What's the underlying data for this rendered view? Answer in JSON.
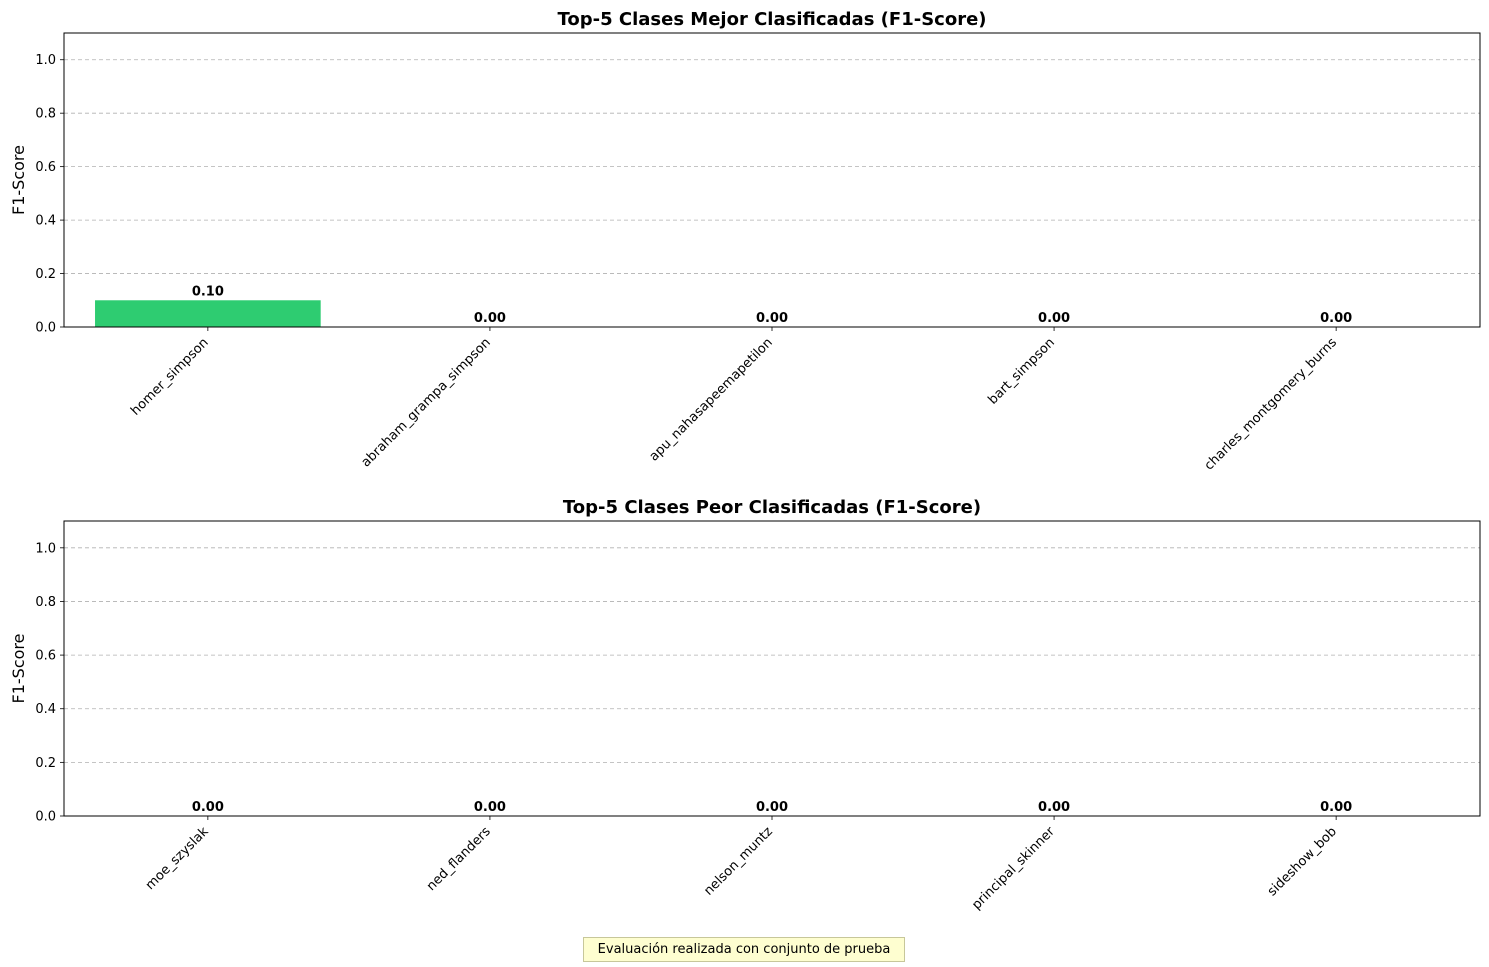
{
  "chart_data": [
    {
      "type": "bar",
      "title": "Top-5 Clases Mejor Clasificadas (F1-Score)",
      "xlabel": "",
      "ylabel": "F1-Score",
      "categories": [
        "homer_simpson",
        "abraham_grampa_simpson",
        "apu_nahasapeemapetilon",
        "bart_simpson",
        "charles_montgomery_burns"
      ],
      "values": [
        0.1,
        0.0,
        0.0,
        0.0,
        0.0
      ],
      "value_labels": [
        "0.10",
        "0.00",
        "0.00",
        "0.00",
        "0.00"
      ],
      "ylim": [
        0,
        1.1
      ],
      "yticks": [
        0.0,
        0.2,
        0.4,
        0.6,
        0.8,
        1.0
      ],
      "ytick_labels": [
        "0.0",
        "0.2",
        "0.4",
        "0.6",
        "0.8",
        "1.0"
      ],
      "grid": "y-dashed",
      "bar_color": "#2ecc71"
    },
    {
      "type": "bar",
      "title": "Top-5 Clases Peor Clasificadas (F1-Score)",
      "xlabel": "",
      "ylabel": "F1-Score",
      "categories": [
        "moe_szyslak",
        "ned_flanders",
        "nelson_muntz",
        "principal_skinner",
        "sideshow_bob"
      ],
      "values": [
        0.0,
        0.0,
        0.0,
        0.0,
        0.0
      ],
      "value_labels": [
        "0.00",
        "0.00",
        "0.00",
        "0.00",
        "0.00"
      ],
      "ylim": [
        0,
        1.1
      ],
      "yticks": [
        0.0,
        0.2,
        0.4,
        0.6,
        0.8,
        1.0
      ],
      "ytick_labels": [
        "0.0",
        "0.2",
        "0.4",
        "0.6",
        "0.8",
        "1.0"
      ],
      "grid": "y-dashed",
      "bar_color": "#e74c3c"
    }
  ],
  "footnote": "Evaluación realizada con conjunto de prueba"
}
